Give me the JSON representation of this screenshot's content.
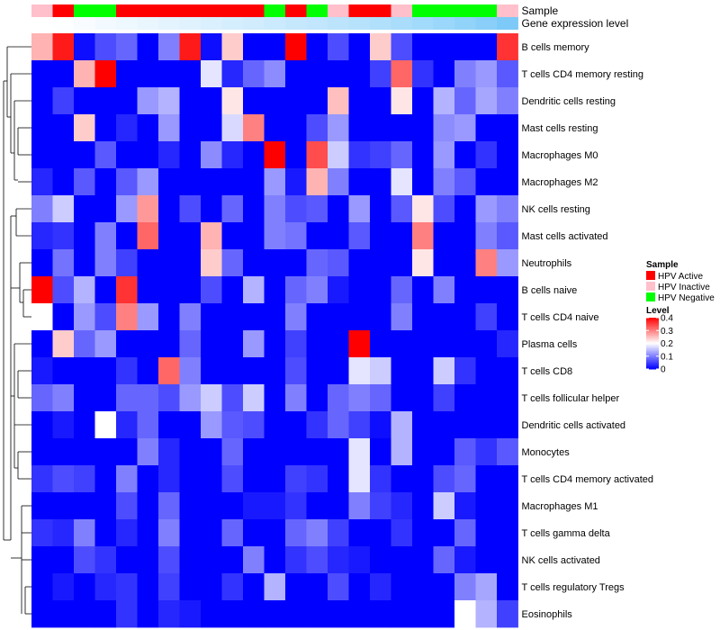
{
  "chart_data": {
    "type": "heatmap",
    "title": "",
    "annotation_tracks": [
      {
        "name": "Sample",
        "values": [
          "HPV Inactive",
          "HPV Active",
          "HPV Negative",
          "HPV Negative",
          "HPV Active",
          "HPV Active",
          "HPV Active",
          "HPV Active",
          "HPV Active",
          "HPV Active",
          "HPV Active",
          "HPV Negative",
          "HPV Active",
          "HPV Negative",
          "HPV Inactive",
          "HPV Active",
          "HPV Active",
          "HPV Inactive",
          "HPV Negative",
          "HPV Negative",
          "HPV Negative",
          "HPV Negative",
          "HPV Inactive"
        ]
      },
      {
        "name": "Gene expression level",
        "values": [
          "#ffffff",
          "#fcfeff",
          "#f8fcff",
          "#f3faff",
          "#eef8ff",
          "#e9f6fe",
          "#e4f4fe",
          "#dff2fe",
          "#daf0fe",
          "#d5eefe",
          "#d0ecfd",
          "#cbeafd",
          "#c6e8fd",
          "#c1e6fd",
          "#bce4fc",
          "#b7e2fc",
          "#b0e0fb",
          "#a9ddfb",
          "#a2dafb",
          "#9bd7fa",
          "#92d3f9",
          "#89cff9",
          "#7dcaf8"
        ]
      }
    ],
    "rows": [
      "B cells memory",
      "T cells CD4 memory resting",
      "Dendritic cells resting",
      "Mast cells resting",
      "Macrophages M0",
      "Macrophages M2",
      "NK cells resting",
      "Mast cells activated",
      "Neutrophils",
      "B cells naive",
      "T cells CD4 naive",
      "Plasma cells",
      "T cells CD8",
      "T cells follicular helper",
      "Dendritic cells activated",
      "Monocytes",
      "T cells CD4 memory activated",
      "Macrophages M1",
      "T cells gamma delta",
      "NK cells activated",
      "T cells regulatory  Tregs",
      "Eosinophils"
    ],
    "values": [
      [
        0.26,
        0.38,
        0.01,
        0.06,
        0.08,
        0.0,
        0.1,
        0.38,
        0.01,
        0.24,
        0.0,
        0.0,
        0.4,
        0.0,
        0.06,
        0.0,
        0.24,
        0.06,
        0.0,
        0.0,
        0.0,
        0.0,
        0.36
      ],
      [
        0.0,
        0.0,
        0.26,
        0.4,
        0.0,
        0.0,
        0.0,
        0.0,
        0.18,
        0.03,
        0.08,
        0.11,
        0.0,
        0.0,
        0.0,
        0.0,
        0.05,
        0.32,
        0.04,
        0.0,
        0.1,
        0.12,
        0.07
      ],
      [
        0.0,
        0.05,
        0.0,
        0.0,
        0.0,
        0.12,
        0.14,
        0.0,
        0.0,
        0.22,
        0.0,
        0.0,
        0.0,
        0.0,
        0.25,
        0.0,
        0.0,
        0.22,
        0.0,
        0.14,
        0.08,
        0.13,
        0.1
      ],
      [
        0.0,
        0.0,
        0.24,
        0.0,
        0.03,
        0.0,
        0.12,
        0.0,
        0.0,
        0.17,
        0.3,
        0.0,
        0.0,
        0.06,
        0.12,
        0.0,
        0.0,
        0.0,
        0.0,
        0.11,
        0.12,
        0.0,
        0.0
      ],
      [
        0.0,
        0.0,
        0.0,
        0.07,
        0.0,
        0.0,
        0.03,
        0.0,
        0.11,
        0.03,
        0.0,
        0.4,
        0.0,
        0.34,
        0.16,
        0.04,
        0.05,
        0.08,
        0.0,
        0.12,
        0.0,
        0.04,
        0.0
      ],
      [
        0.03,
        0.0,
        0.07,
        0.0,
        0.07,
        0.12,
        0.0,
        0.0,
        0.0,
        0.0,
        0.0,
        0.12,
        0.02,
        0.26,
        0.1,
        0.0,
        0.0,
        0.18,
        0.0,
        0.1,
        0.07,
        0.0,
        0.0
      ],
      [
        0.1,
        0.16,
        0.0,
        0.0,
        0.12,
        0.28,
        0.0,
        0.06,
        0.0,
        0.08,
        0.0,
        0.1,
        0.06,
        0.07,
        0.0,
        0.12,
        0.0,
        0.07,
        0.22,
        0.06,
        0.0,
        0.12,
        0.1
      ],
      [
        0.03,
        0.04,
        0.0,
        0.1,
        0.0,
        0.32,
        0.0,
        0.0,
        0.26,
        0.0,
        0.0,
        0.1,
        0.09,
        0.0,
        0.0,
        0.07,
        0.0,
        0.0,
        0.3,
        0.0,
        0.0,
        0.1,
        0.07
      ],
      [
        0.0,
        0.09,
        0.0,
        0.1,
        0.05,
        0.0,
        0.0,
        0.0,
        0.24,
        0.08,
        0.0,
        0.0,
        0.0,
        0.08,
        0.07,
        0.0,
        0.0,
        0.0,
        0.22,
        0.0,
        0.0,
        0.3,
        0.12
      ],
      [
        0.4,
        0.06,
        0.14,
        0.0,
        0.36,
        0.0,
        0.0,
        0.0,
        0.06,
        0.0,
        0.14,
        0.0,
        0.08,
        0.1,
        0.02,
        0.0,
        0.0,
        0.08,
        0.0,
        0.1,
        0.0,
        0.0,
        0.0
      ],
      [
        0.2,
        0.0,
        0.12,
        0.06,
        0.3,
        0.12,
        0.0,
        0.1,
        0.0,
        0.0,
        0.0,
        0.0,
        0.1,
        0.0,
        0.0,
        0.0,
        0.0,
        0.1,
        0.0,
        0.0,
        0.0,
        0.05,
        0.0
      ],
      [
        0.0,
        0.24,
        0.08,
        0.12,
        0.0,
        0.0,
        0.0,
        0.08,
        0.0,
        0.0,
        0.12,
        0.0,
        0.05,
        0.0,
        0.0,
        0.4,
        0.0,
        0.0,
        0.0,
        0.0,
        0.0,
        0.0,
        0.03
      ],
      [
        0.02,
        0.0,
        0.0,
        0.0,
        0.04,
        0.0,
        0.32,
        0.1,
        0.0,
        0.0,
        0.0,
        0.0,
        0.06,
        0.0,
        0.0,
        0.18,
        0.16,
        0.0,
        0.0,
        0.16,
        0.04,
        0.0,
        0.0
      ],
      [
        0.08,
        0.1,
        0.0,
        0.0,
        0.08,
        0.08,
        0.06,
        0.12,
        0.16,
        0.06,
        0.16,
        0.0,
        0.1,
        0.0,
        0.08,
        0.1,
        0.08,
        0.0,
        0.0,
        0.05,
        0.0,
        0.0,
        0.0
      ],
      [
        0.0,
        0.02,
        0.0,
        0.2,
        0.03,
        0.08,
        0.0,
        0.0,
        0.12,
        0.07,
        0.06,
        0.0,
        0.0,
        0.04,
        0.08,
        0.05,
        0.01,
        0.14,
        0.0,
        0.0,
        0.0,
        0.0,
        0.0
      ],
      [
        0.0,
        0.0,
        0.0,
        0.0,
        0.0,
        0.1,
        0.03,
        0.0,
        0.0,
        0.08,
        0.0,
        0.0,
        0.0,
        0.0,
        0.0,
        0.18,
        0.0,
        0.14,
        0.0,
        0.0,
        0.07,
        0.04,
        0.07
      ],
      [
        0.04,
        0.06,
        0.05,
        0.0,
        0.1,
        0.0,
        0.03,
        0.0,
        0.0,
        0.06,
        0.0,
        0.0,
        0.05,
        0.04,
        0.0,
        0.18,
        0.04,
        0.0,
        0.0,
        0.06,
        0.08,
        0.0,
        0.0
      ],
      [
        0.0,
        0.0,
        0.0,
        0.0,
        0.06,
        0.0,
        0.08,
        0.0,
        0.0,
        0.0,
        0.02,
        0.02,
        0.04,
        0.0,
        0.0,
        0.1,
        0.05,
        0.03,
        0.0,
        0.16,
        0.02,
        0.0,
        0.0
      ],
      [
        0.04,
        0.03,
        0.1,
        0.0,
        0.03,
        0.0,
        0.1,
        0.0,
        0.0,
        0.08,
        0.0,
        0.0,
        0.08,
        0.1,
        0.05,
        0.0,
        0.0,
        0.04,
        0.0,
        0.0,
        0.08,
        0.0,
        0.0
      ],
      [
        0.0,
        0.0,
        0.06,
        0.04,
        0.0,
        0.0,
        0.06,
        0.0,
        0.0,
        0.0,
        0.1,
        0.0,
        0.04,
        0.06,
        0.03,
        0.02,
        0.0,
        0.0,
        0.0,
        0.08,
        0.02,
        0.0,
        0.0
      ],
      [
        0.0,
        0.02,
        0.0,
        0.03,
        0.04,
        0.0,
        0.05,
        0.0,
        0.0,
        0.04,
        0.0,
        0.14,
        0.0,
        0.0,
        0.06,
        0.0,
        0.03,
        0.0,
        0.0,
        0.0,
        0.1,
        0.13,
        0.0
      ],
      [
        0.0,
        0.0,
        0.0,
        0.0,
        0.04,
        0.0,
        0.03,
        0.02,
        0.0,
        0.0,
        0.0,
        0.0,
        0.0,
        0.0,
        0.0,
        0.0,
        0.0,
        0.0,
        0.0,
        0.0,
        0.2,
        0.14,
        0.05
      ]
    ],
    "color_scale": {
      "min": 0,
      "max": 0.4,
      "colors": [
        "#0000ff",
        "#ffffff",
        "#ff0000"
      ]
    },
    "legends": [
      {
        "title": "Sample",
        "items": [
          {
            "label": "HPV Active",
            "color": "#ff0000"
          },
          {
            "label": "HPV Inactive",
            "color": "#ffc0cb"
          },
          {
            "label": "HPV Negative",
            "color": "#00ff00"
          }
        ]
      },
      {
        "title": "Level",
        "ticks": [
          0.4,
          0.3,
          0.2,
          0.1,
          0
        ]
      }
    ]
  }
}
